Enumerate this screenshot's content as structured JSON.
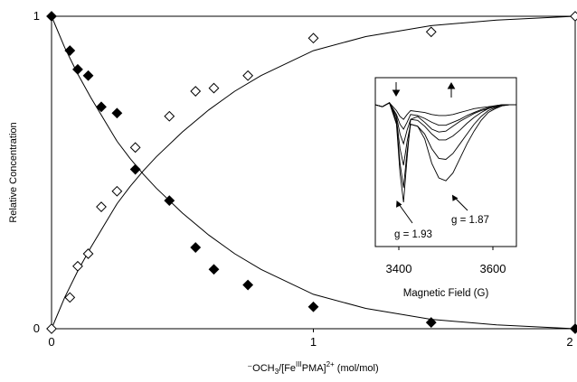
{
  "colors": {
    "ink": "#000000",
    "background": "#ffffff"
  },
  "chart_data": [
    {
      "type": "scatter",
      "title": "",
      "xlabel": "",
      "xlabel_parts": {
        "pre": "⁻OCH",
        "sub1": "3",
        "mid": "/[Fe",
        "sup1": "III",
        "post": "PMA]",
        "sup2": "2+",
        "units": " (mol/mol)"
      },
      "ylabel": "Relative Concentration",
      "xlim": [
        0,
        2
      ],
      "ylim": [
        0,
        1
      ],
      "xticks": [
        "0",
        "1",
        "2"
      ],
      "yticks": [
        "0",
        "1"
      ],
      "grid": false,
      "series": [
        {
          "marker": "filled-diamond",
          "x": [
            0,
            0.07,
            0.1,
            0.14,
            0.19,
            0.25,
            0.32,
            0.45,
            0.55,
            0.62,
            0.75,
            1.0,
            1.45,
            2.0
          ],
          "y": [
            1.0,
            0.89,
            0.83,
            0.81,
            0.71,
            0.69,
            0.51,
            0.41,
            0.26,
            0.19,
            0.14,
            0.07,
            0.02,
            0.0
          ]
        },
        {
          "marker": "open-diamond",
          "x": [
            0,
            0.07,
            0.1,
            0.14,
            0.19,
            0.25,
            0.32,
            0.45,
            0.55,
            0.62,
            0.75,
            1.0,
            1.45,
            2.0
          ],
          "y": [
            0.0,
            0.1,
            0.2,
            0.24,
            0.39,
            0.44,
            0.58,
            0.68,
            0.76,
            0.77,
            0.81,
            0.93,
            0.95,
            1.0
          ]
        }
      ],
      "fit_curves": [
        {
          "x": [
            0,
            0.05,
            0.1,
            0.15,
            0.2,
            0.25,
            0.3,
            0.35,
            0.4,
            0.5,
            0.6,
            0.7,
            0.8,
            1.0,
            1.2,
            1.45,
            1.7,
            2.0
          ],
          "y": [
            1.0,
            0.9,
            0.815,
            0.74,
            0.67,
            0.6,
            0.545,
            0.495,
            0.45,
            0.37,
            0.3,
            0.24,
            0.19,
            0.11,
            0.065,
            0.03,
            0.012,
            0.0
          ]
        },
        {
          "x": [
            0,
            0.05,
            0.1,
            0.15,
            0.2,
            0.25,
            0.3,
            0.35,
            0.4,
            0.5,
            0.6,
            0.7,
            0.8,
            1.0,
            1.2,
            1.45,
            1.7,
            2.0
          ],
          "y": [
            0.0,
            0.1,
            0.185,
            0.26,
            0.33,
            0.4,
            0.455,
            0.505,
            0.55,
            0.63,
            0.7,
            0.76,
            0.81,
            0.89,
            0.935,
            0.97,
            0.988,
            1.0
          ]
        }
      ]
    },
    {
      "type": "line",
      "title": "",
      "xlabel": "Magnetic Field (G)",
      "ylabel": "",
      "xlim": [
        3300,
        3700
      ],
      "xticks": [
        "3400",
        "3600"
      ],
      "annotations": [
        "g = 1.93",
        "g = 1.87"
      ],
      "arrows": [
        "down",
        "up"
      ],
      "series": [
        {
          "x": [
            3300,
            3320,
            3340,
            3360,
            3370,
            3380,
            3390,
            3400,
            3420,
            3440,
            3460,
            3480,
            3500,
            3520,
            3540,
            3560,
            3580,
            3600,
            3620,
            3640,
            3660,
            3680,
            3700
          ],
          "y": [
            0.0,
            -0.02,
            0.02,
            -0.2,
            -0.7,
            -1.0,
            -0.55,
            -0.15,
            -0.12,
            -0.18,
            -0.25,
            -0.28,
            -0.27,
            -0.22,
            -0.17,
            -0.13,
            -0.09,
            -0.06,
            -0.04,
            -0.02,
            0.0,
            0.0,
            0.0
          ]
        },
        {
          "x": [
            3300,
            3320,
            3340,
            3360,
            3370,
            3380,
            3390,
            3400,
            3420,
            3440,
            3460,
            3480,
            3500,
            3520,
            3540,
            3560,
            3580,
            3600,
            3620,
            3640,
            3660,
            3680,
            3700
          ],
          "y": [
            0.0,
            -0.02,
            0.02,
            -0.18,
            -0.6,
            -0.85,
            -0.48,
            -0.2,
            -0.22,
            -0.35,
            -0.6,
            -0.75,
            -0.78,
            -0.7,
            -0.55,
            -0.4,
            -0.27,
            -0.16,
            -0.08,
            -0.04,
            -0.01,
            0.0,
            0.0
          ]
        },
        {
          "x": [
            3300,
            3320,
            3340,
            3360,
            3370,
            3380,
            3390,
            3400,
            3420,
            3440,
            3460,
            3480,
            3500,
            3520,
            3540,
            3560,
            3580,
            3600,
            3620,
            3640,
            3660,
            3680,
            3700
          ],
          "y": [
            0.0,
            -0.02,
            0.02,
            -0.15,
            -0.45,
            -0.62,
            -0.38,
            -0.2,
            -0.22,
            -0.3,
            -0.45,
            -0.55,
            -0.56,
            -0.5,
            -0.4,
            -0.3,
            -0.2,
            -0.12,
            -0.06,
            -0.03,
            -0.01,
            0.0,
            0.0
          ]
        },
        {
          "x": [
            3300,
            3320,
            3340,
            3360,
            3370,
            3380,
            3390,
            3400,
            3420,
            3440,
            3460,
            3480,
            3500,
            3520,
            3540,
            3560,
            3580,
            3600,
            3620,
            3640,
            3660,
            3680,
            3700
          ],
          "y": [
            0.0,
            -0.02,
            0.02,
            -0.12,
            -0.3,
            -0.4,
            -0.26,
            -0.15,
            -0.16,
            -0.22,
            -0.3,
            -0.36,
            -0.36,
            -0.32,
            -0.26,
            -0.19,
            -0.13,
            -0.08,
            -0.04,
            -0.02,
            0.0,
            0.0,
            0.0
          ]
        },
        {
          "x": [
            3300,
            3320,
            3340,
            3360,
            3370,
            3380,
            3390,
            3400,
            3420,
            3440,
            3460,
            3480,
            3500,
            3520,
            3540,
            3560,
            3580,
            3600,
            3620,
            3640,
            3660,
            3680,
            3700
          ],
          "y": [
            0.0,
            -0.02,
            0.02,
            -0.1,
            -0.2,
            -0.25,
            -0.18,
            -0.1,
            -0.11,
            -0.14,
            -0.18,
            -0.21,
            -0.21,
            -0.18,
            -0.15,
            -0.11,
            -0.08,
            -0.05,
            -0.03,
            -0.01,
            0.0,
            0.0,
            0.0
          ]
        },
        {
          "x": [
            3300,
            3320,
            3340,
            3360,
            3370,
            3380,
            3390,
            3400,
            3420,
            3440,
            3460,
            3480,
            3500,
            3520,
            3540,
            3560,
            3580,
            3600,
            3620,
            3640,
            3660,
            3680,
            3700
          ],
          "y": [
            0.0,
            -0.02,
            0.02,
            -0.06,
            -0.12,
            -0.15,
            -0.1,
            -0.06,
            -0.07,
            -0.08,
            -0.1,
            -0.11,
            -0.11,
            -0.1,
            -0.08,
            -0.06,
            -0.04,
            -0.03,
            -0.02,
            -0.01,
            0.0,
            0.0,
            0.0
          ]
        }
      ]
    }
  ]
}
